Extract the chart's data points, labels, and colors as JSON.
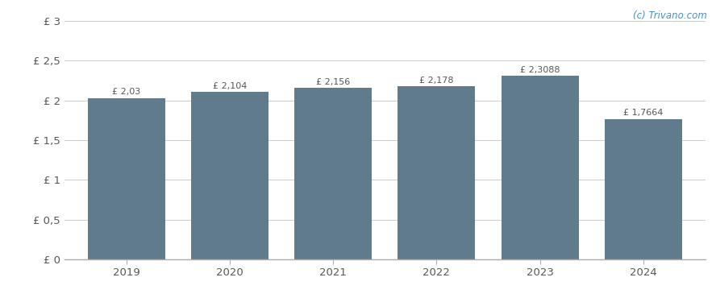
{
  "categories": [
    "2019",
    "2020",
    "2021",
    "2022",
    "2023",
    "2024"
  ],
  "values": [
    2.03,
    2.104,
    2.156,
    2.178,
    2.3088,
    1.7664
  ],
  "labels": [
    "£ 2,03",
    "£ 2,104",
    "£ 2,156",
    "£ 2,178",
    "£ 2,3088",
    "£ 1,7664"
  ],
  "bar_color": "#607b8b",
  "background_color": "#ffffff",
  "ylim": [
    0,
    3.0
  ],
  "yticks": [
    0,
    0.5,
    1.0,
    1.5,
    2.0,
    2.5,
    3.0
  ],
  "ytick_labels": [
    "£ 0",
    "£ 0,5",
    "£ 1",
    "£ 1,5",
    "£ 2",
    "£ 2,5",
    "£ 3"
  ],
  "watermark": "(c) Trivano.com",
  "watermark_color": "#4a90c4",
  "grid_color": "#cccccc",
  "tick_label_color": "#555555",
  "label_font_color": "#555555",
  "bar_width": 0.75,
  "label_fontsize": 8.0,
  "tick_fontsize": 9.5
}
